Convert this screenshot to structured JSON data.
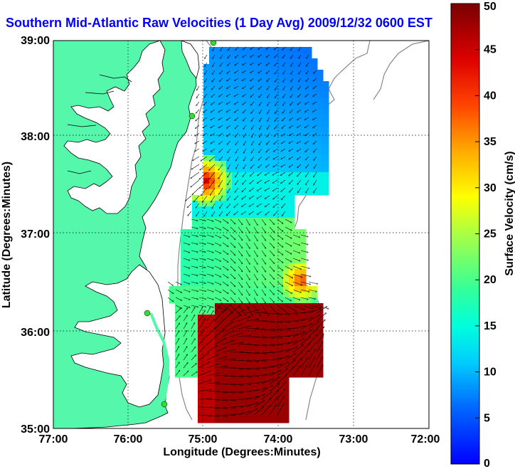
{
  "title": "Southern Mid-Atlantic Raw Velocities (1 Day Avg) 2009/12/32 0600 EST",
  "x_axis_label": "Longitude (Degrees:Minutes)",
  "y_axis_label": "Latitude (Degrees:Minutes)",
  "x_ticks": [
    "77:00",
    "76:00",
    "75:00",
    "74:00",
    "73:00",
    "72:00"
  ],
  "y_ticks": [
    "39:00",
    "38:00",
    "37:00",
    "36:00",
    "35:00"
  ],
  "colorbar": {
    "label": "Surface Velocity (cm/s)",
    "ticks": [
      "0",
      "5",
      "10",
      "15",
      "20",
      "25",
      "30",
      "35",
      "40",
      "45",
      "50"
    ],
    "min": 0,
    "max": 50,
    "colormap": "jet"
  },
  "colors": {
    "land": "#55f7aa",
    "title": "#0000ff",
    "coast_line": "#000000",
    "bathymetry": "#888888",
    "station": "#33dd33"
  },
  "map": {
    "lon_range": [
      -77,
      -72
    ],
    "lat_range": [
      35,
      39
    ],
    "grid": true
  }
}
